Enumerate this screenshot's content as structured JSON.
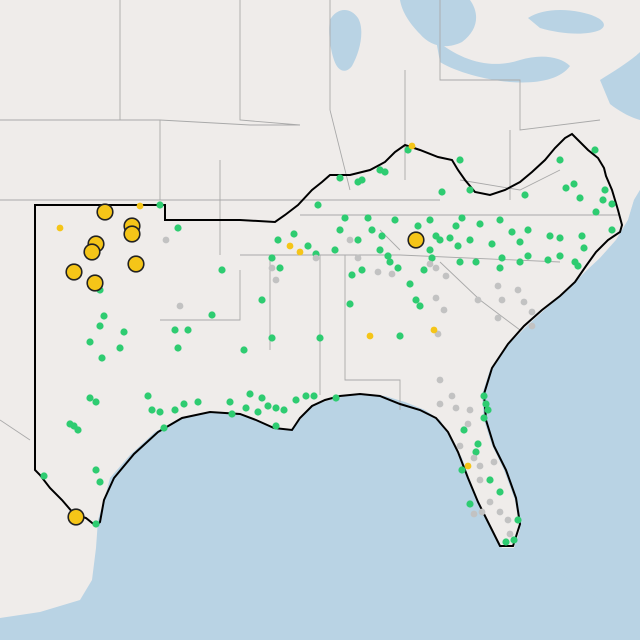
{
  "map": {
    "colors": {
      "land": "#efecea",
      "water": "#b9d3e4",
      "state_border": "#a9a9a9",
      "region_outline": "#000000",
      "site_green": "#2ecc71",
      "site_gray": "#c2c2c2",
      "site_yellow": "#f5c518",
      "marker_outline": "#222222"
    },
    "layers": [
      "basemap",
      "state-borders",
      "region-outline",
      "site-markers"
    ],
    "marker_classes": [
      {
        "id": "green",
        "shape": "small-dot"
      },
      {
        "id": "gray",
        "shape": "small-dot"
      },
      {
        "id": "yellow-small",
        "shape": "small-dot"
      },
      {
        "id": "yellow-large",
        "shape": "outlined-circle"
      }
    ]
  }
}
